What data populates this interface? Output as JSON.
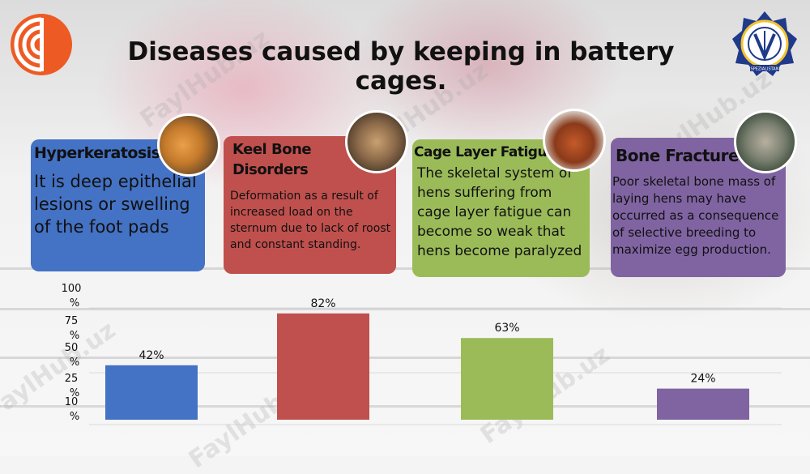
{
  "title": "Diseases caused by keeping in battery cages.",
  "watermark": "FaylHub.uz",
  "logo_right_text": "SPEZIALISTAN",
  "cards": [
    {
      "heading": "Hyperkeratosis",
      "text": "It is deep epithelial lesions or swelling of the foot pads",
      "color": "#4472c4"
    },
    {
      "heading": "Keel Bone Disorders",
      "text": "Deformation as a result of increased load on the sternum due to lack of roost and constant standing.",
      "color": "#c0504d"
    },
    {
      "heading": "Cage Layer Fatigue",
      "text": "The skeletal system of hens suffering from cage layer fatigue can become so weak that hens become paralyzed",
      "color": "#9bbb59"
    },
    {
      "heading": "Bone Fractures",
      "text": "Poor skeletal bone mass of laying hens may have occurred as a consequence of selective breeding to maximize egg production.",
      "color": "#8064a2"
    }
  ],
  "chart_data": {
    "type": "bar",
    "categories": [
      "Hyperkeratosis",
      "Keel Bone Disorders",
      "Cage Layer Fatigue",
      "Bone Fractures"
    ],
    "values": [
      42,
      82,
      63,
      24
    ],
    "value_labels": [
      "42%",
      "82%",
      "63%",
      "24%"
    ],
    "colors": [
      "#4472c4",
      "#c0504d",
      "#9bbb59",
      "#8064a2"
    ],
    "yticks": [
      100,
      75,
      50,
      25,
      10
    ],
    "ytick_labels": [
      "100%",
      "75%",
      "50%",
      "25%",
      "10%"
    ],
    "ylim": [
      0,
      100
    ]
  }
}
